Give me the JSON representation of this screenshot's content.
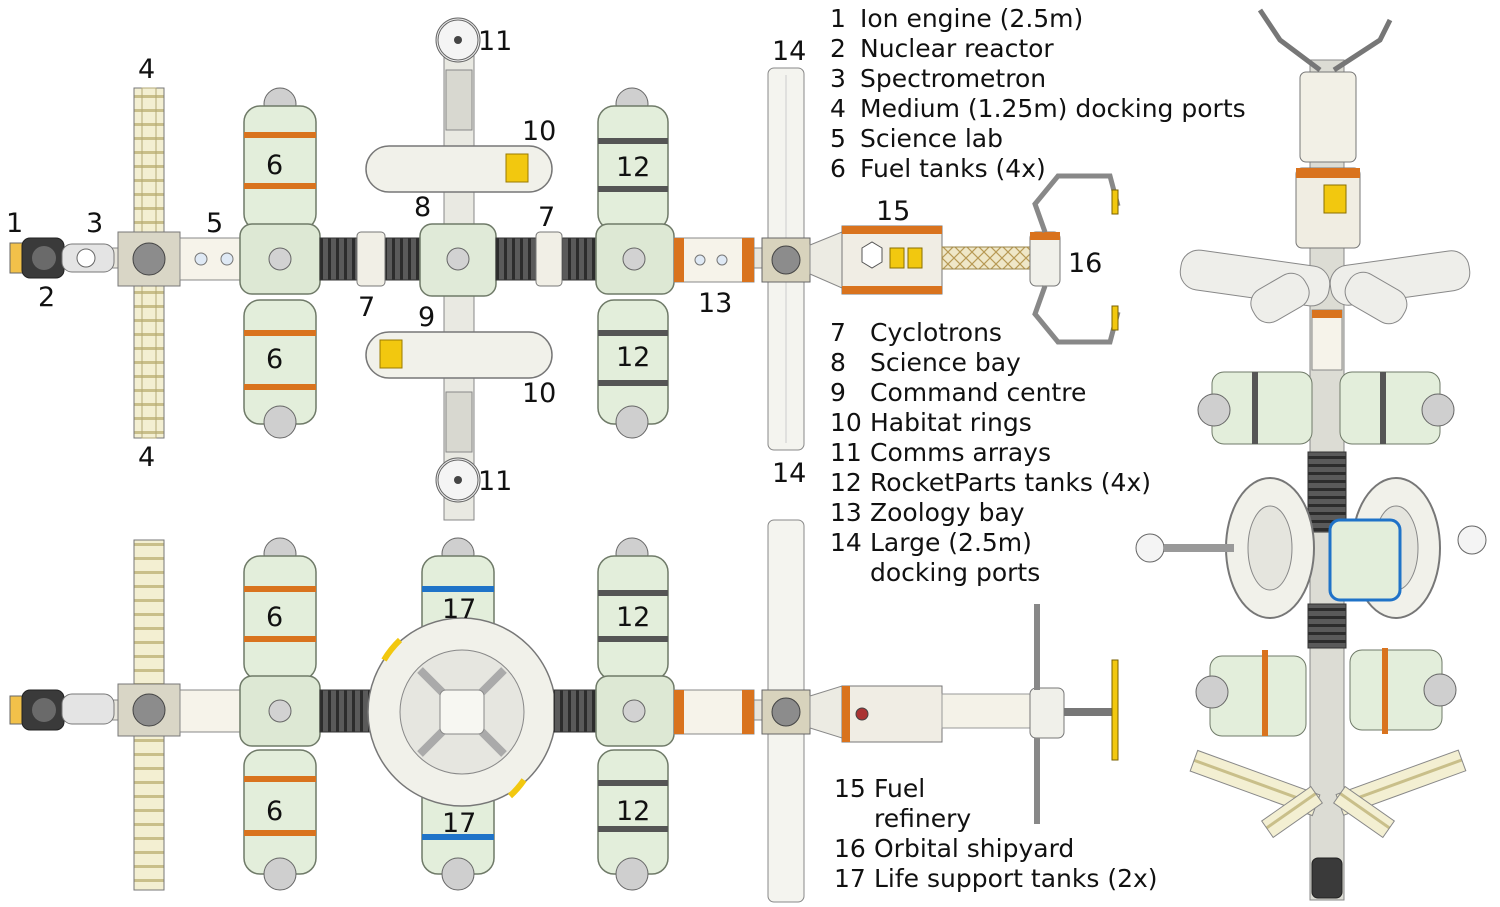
{
  "legend_top": [
    {
      "num": "1",
      "text": "Ion engine (2.5m)"
    },
    {
      "num": "2",
      "text": "Nuclear reactor"
    },
    {
      "num": "3",
      "text": "Spectrometron"
    },
    {
      "num": "4",
      "text": "Medium (1.25m) docking ports"
    },
    {
      "num": "5",
      "text": "Science lab"
    },
    {
      "num": "6",
      "text": "Fuel tanks (4x)"
    }
  ],
  "legend_mid": [
    {
      "num": "7",
      "text": "Cyclotrons"
    },
    {
      "num": "8",
      "text": "Science bay"
    },
    {
      "num": "9",
      "text": "Command centre"
    },
    {
      "num": "10",
      "text": "Habitat rings"
    },
    {
      "num": "11",
      "text": "Comms arrays"
    },
    {
      "num": "12",
      "text": "RocketParts tanks (4x)"
    },
    {
      "num": "13",
      "text": "Zoology bay"
    },
    {
      "num": "14",
      "text": "Large (2.5m)",
      "cont": "docking ports"
    }
  ],
  "legend_bottom": [
    {
      "num": "15",
      "text": "Fuel",
      "cont": "refinery"
    },
    {
      "num": "16",
      "text": "Orbital shipyard"
    },
    {
      "num": "17",
      "text": "Life support tanks (2x)"
    }
  ],
  "callouts": {
    "c1": "1",
    "c2": "2",
    "c3": "3",
    "c4a": "4",
    "c4b": "4",
    "c5": "5",
    "c6a": "6",
    "c6b": "6",
    "c6c": "6",
    "c6d": "6",
    "c7a": "7",
    "c7b": "7",
    "c8": "8",
    "c9": "9",
    "c10a": "10",
    "c10b": "10",
    "c11a": "11",
    "c11b": "11",
    "c12a": "12",
    "c12b": "12",
    "c12c": "12",
    "c12d": "12",
    "c13": "13",
    "c14a": "14",
    "c14b": "14",
    "c15": "15",
    "c16": "16",
    "c17a": "17",
    "c17b": "17"
  },
  "colors": {
    "tank": "#e3eedb",
    "tank_edge": "#6f7a68",
    "orange_band": "#d9731e",
    "gray_band": "#555555",
    "blue_band": "#1f73c8",
    "ring": "#f1f1ea",
    "port": "#f3efd2",
    "hose": "#4a4a4a",
    "accent_yellow": "#f2c80f"
  }
}
